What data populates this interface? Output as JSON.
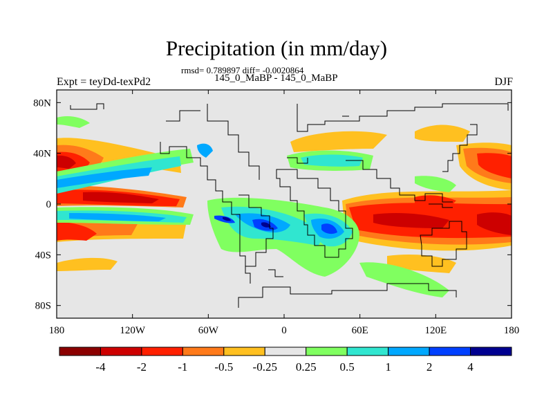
{
  "figure": {
    "title": "Precipitation (in mm/day)",
    "stats": "rmsd= 0.789897 diff= -0.0020864",
    "period": "145_0_MaBP - 145_0_MaBP",
    "experiment": "Expt = teyDd-texPd2",
    "season": "DJF"
  },
  "map": {
    "projection": "cylindrical equidistant",
    "lon_range": [
      -180,
      180
    ],
    "lat_range": [
      -90,
      90
    ],
    "background_color": "#e6e6e6",
    "lon_ticks": [
      {
        "value": -180,
        "label": "180"
      },
      {
        "value": -120,
        "label": "120W"
      },
      {
        "value": -60,
        "label": "60W"
      },
      {
        "value": 0,
        "label": "0"
      },
      {
        "value": 60,
        "label": "60E"
      },
      {
        "value": 120,
        "label": "120E"
      },
      {
        "value": 180,
        "label": "180"
      }
    ],
    "lat_ticks": [
      {
        "value": 80,
        "label": "80N"
      },
      {
        "value": 40,
        "label": "40N"
      },
      {
        "value": 0,
        "label": "0"
      },
      {
        "value": -40,
        "label": "40S"
      },
      {
        "value": -80,
        "label": "80S"
      }
    ]
  },
  "colorbar": {
    "colors": [
      "#8b0000",
      "#cd0000",
      "#ff2000",
      "#ff7a1a",
      "#ffc020",
      "#e6e6e6",
      "#80ff60",
      "#30e6d0",
      "#00a8ff",
      "#0040ff",
      "#000090"
    ],
    "labels": [
      "-4",
      "-2",
      "-1",
      "-0.5",
      "-0.25",
      "0.25",
      "0.5",
      "1",
      "2",
      "4"
    ]
  }
}
